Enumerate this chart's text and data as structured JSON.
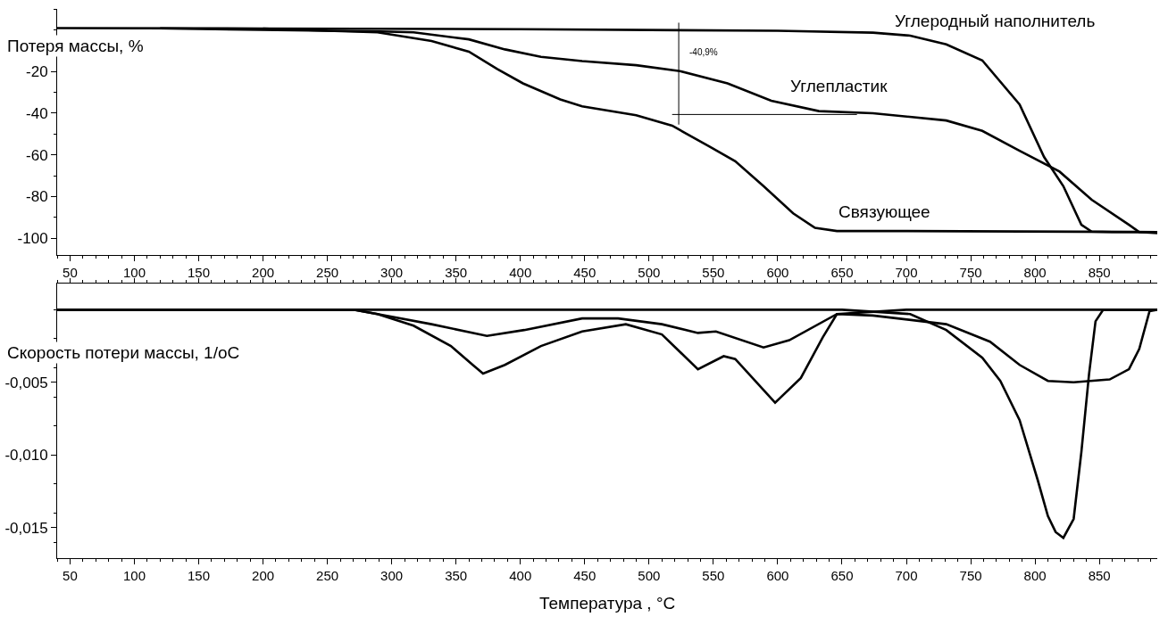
{
  "chart_data": [
    {
      "type": "line",
      "ylabel": "Потеря массы, %",
      "xlim": [
        40,
        895
      ],
      "ylim": [
        -108,
        10
      ],
      "xticks": [
        50,
        100,
        150,
        200,
        250,
        300,
        350,
        400,
        450,
        500,
        550,
        600,
        650,
        700,
        750,
        800,
        850
      ],
      "yticks": [
        -20,
        -40,
        -60,
        -80,
        -100
      ],
      "grid": false,
      "legend": false,
      "marker": "none",
      "line_style": "solid",
      "annotations": [
        "-40,9%"
      ],
      "series": [
        {
          "name": "Углеродный наполнитель",
          "color": "#000000",
          "x": [
            40,
            200,
            400,
            600,
            674,
            703,
            731,
            759,
            788,
            807,
            822,
            836,
            844,
            860,
            895
          ],
          "values": [
            0.8,
            0.6,
            0.3,
            -0.5,
            -1.4,
            -2.8,
            -7,
            -14.7,
            -35.8,
            -61,
            -75,
            -93.5,
            -96.8,
            -97,
            -97
          ]
        },
        {
          "name": "Углепластик",
          "color": "#000000",
          "x": [
            200,
            250,
            291,
            317,
            360,
            388,
            416,
            448,
            490,
            524,
            561,
            595,
            632,
            674,
            731,
            759,
            788,
            819,
            844,
            873,
            881,
            895
          ],
          "values": [
            0.6,
            -0.5,
            -0.8,
            -1.2,
            -4.6,
            -9.4,
            -13,
            -15,
            -17,
            -19.8,
            -25.7,
            -34,
            -39,
            -40,
            -43.5,
            -48.5,
            -58,
            -68,
            -81.5,
            -93.5,
            -97,
            -97.5
          ]
        },
        {
          "name": "Связующее",
          "color": "#000000",
          "x": [
            120,
            250,
            289,
            331,
            360,
            382,
            402,
            431,
            448,
            490,
            518,
            547,
            567,
            589,
            612,
            629,
            646,
            700,
            895
          ],
          "values": [
            0.7,
            -0.5,
            -1.2,
            -5.4,
            -10.5,
            -18.8,
            -25.7,
            -33.4,
            -36.7,
            -41,
            -46,
            -56,
            -63,
            -75,
            -88,
            -95,
            -96.5,
            -96.5,
            -97
          ]
        }
      ]
    },
    {
      "type": "line",
      "xlabel": "Температура , °C",
      "ylabel": "Скорость потери массы, 1/oC",
      "xlim": [
        40,
        895
      ],
      "ylim": [
        -0.0171,
        0.0018
      ],
      "xticks": [
        50,
        100,
        150,
        200,
        250,
        300,
        350,
        400,
        450,
        500,
        550,
        600,
        650,
        700,
        750,
        800,
        850
      ],
      "yticks": [
        {
          "value": -0.005,
          "label": "-0,005"
        },
        {
          "value": -0.01,
          "label": "-0,010"
        },
        {
          "value": -0.015,
          "label": "-0,015"
        }
      ],
      "grid": false,
      "legend": false,
      "marker": "none",
      "line_style": "solid",
      "series": [
        {
          "color": "#000000",
          "x": [
            40,
            650,
            703,
            731,
            759,
            773,
            788,
            802,
            810,
            816,
            822,
            830,
            836,
            842,
            847,
            853,
            895
          ],
          "values": [
            0,
            0,
            -0.0003,
            -0.0014,
            -0.0033,
            -0.0049,
            -0.0076,
            -0.0117,
            -0.0142,
            -0.0153,
            -0.0157,
            -0.0144,
            -0.0098,
            -0.0044,
            -0.0008,
            0,
            0
          ]
        },
        {
          "color": "#000000",
          "x": [
            40,
            270,
            289,
            331,
            374,
            403,
            448,
            476,
            510,
            538,
            552,
            589,
            609,
            646,
            674,
            731,
            765,
            788,
            810,
            830,
            858,
            873,
            881,
            889,
            895
          ],
          "values": [
            0,
            0,
            -0.0003,
            -0.001,
            -0.0018,
            -0.0014,
            -0.0006,
            -0.0006,
            -0.001,
            -0.0016,
            -0.0015,
            -0.0026,
            -0.0021,
            -0.0003,
            -0.0004,
            -0.001,
            -0.0022,
            -0.0038,
            -0.0049,
            -0.005,
            -0.0048,
            -0.0041,
            -0.0027,
            -0.0001,
            0
          ]
        },
        {
          "color": "#000000",
          "x": [
            40,
            270,
            289,
            317,
            346,
            363,
            371,
            388,
            416,
            448,
            482,
            510,
            538,
            558,
            567,
            598,
            618,
            635,
            646,
            700,
            895
          ],
          "values": [
            0,
            0,
            -0.0003,
            -0.0011,
            -0.0025,
            -0.0038,
            -0.0044,
            -0.0038,
            -0.0025,
            -0.0015,
            -0.001,
            -0.0017,
            -0.0041,
            -0.0032,
            -0.0034,
            -0.0064,
            -0.0047,
            -0.0019,
            -0.0003,
            0,
            0
          ]
        }
      ]
    }
  ]
}
